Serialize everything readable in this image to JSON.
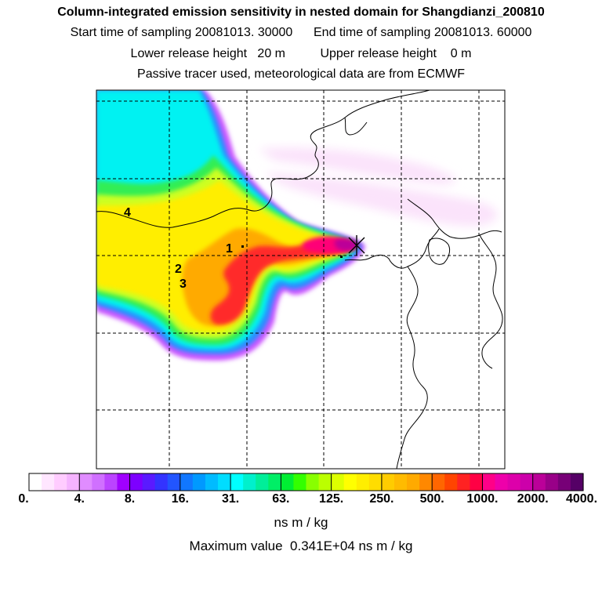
{
  "chart_data": {
    "type": "heatmap",
    "title": "Column-integrated emission sensitivity in nested domain for Shangdianzi_200810",
    "subtitle_lines": [
      "Start time of sampling 20081013. 30000      End time of sampling 20081013. 60000",
      "Lower release height   20 m          Upper release height    0 m",
      "Passive tracer used, meteorological data are from ECMWF"
    ],
    "grid": true,
    "receptor_marker": "X",
    "site_labels": [
      "1",
      "2",
      "3",
      "4"
    ],
    "colorbar": {
      "tick_labels": [
        "0.",
        "4.",
        "8.",
        "16.",
        "31.",
        "63.",
        "125.",
        "250.",
        "500.",
        "1000.",
        "2000.",
        "4000."
      ],
      "colors": [
        "#ffffff",
        "#ffe6ff",
        "#ffccff",
        "#f5b3ff",
        "#e08cff",
        "#d070ff",
        "#bb44ff",
        "#a000ff",
        "#7d00ff",
        "#5a1aff",
        "#3333ff",
        "#2255ff",
        "#1177ff",
        "#0099ff",
        "#00bbff",
        "#00ddff",
        "#00ffff",
        "#00f0cc",
        "#00ee99",
        "#00ee66",
        "#00ee33",
        "#33ff00",
        "#88ff00",
        "#bbff00",
        "#ddff00",
        "#ffff00",
        "#ffee00",
        "#ffdd00",
        "#ffcc00",
        "#ffbb00",
        "#ffaa00",
        "#ff8800",
        "#ff6600",
        "#ff4400",
        "#ff2222",
        "#ff0044",
        "#ff0088",
        "#ee00aa",
        "#dd00aa",
        "#cc00aa",
        "#bb0099",
        "#990088",
        "#770077",
        "#550066"
      ],
      "units": "ns m / kg"
    },
    "max_value_text": "Maximum value  0.341E+04 ns m / kg"
  }
}
